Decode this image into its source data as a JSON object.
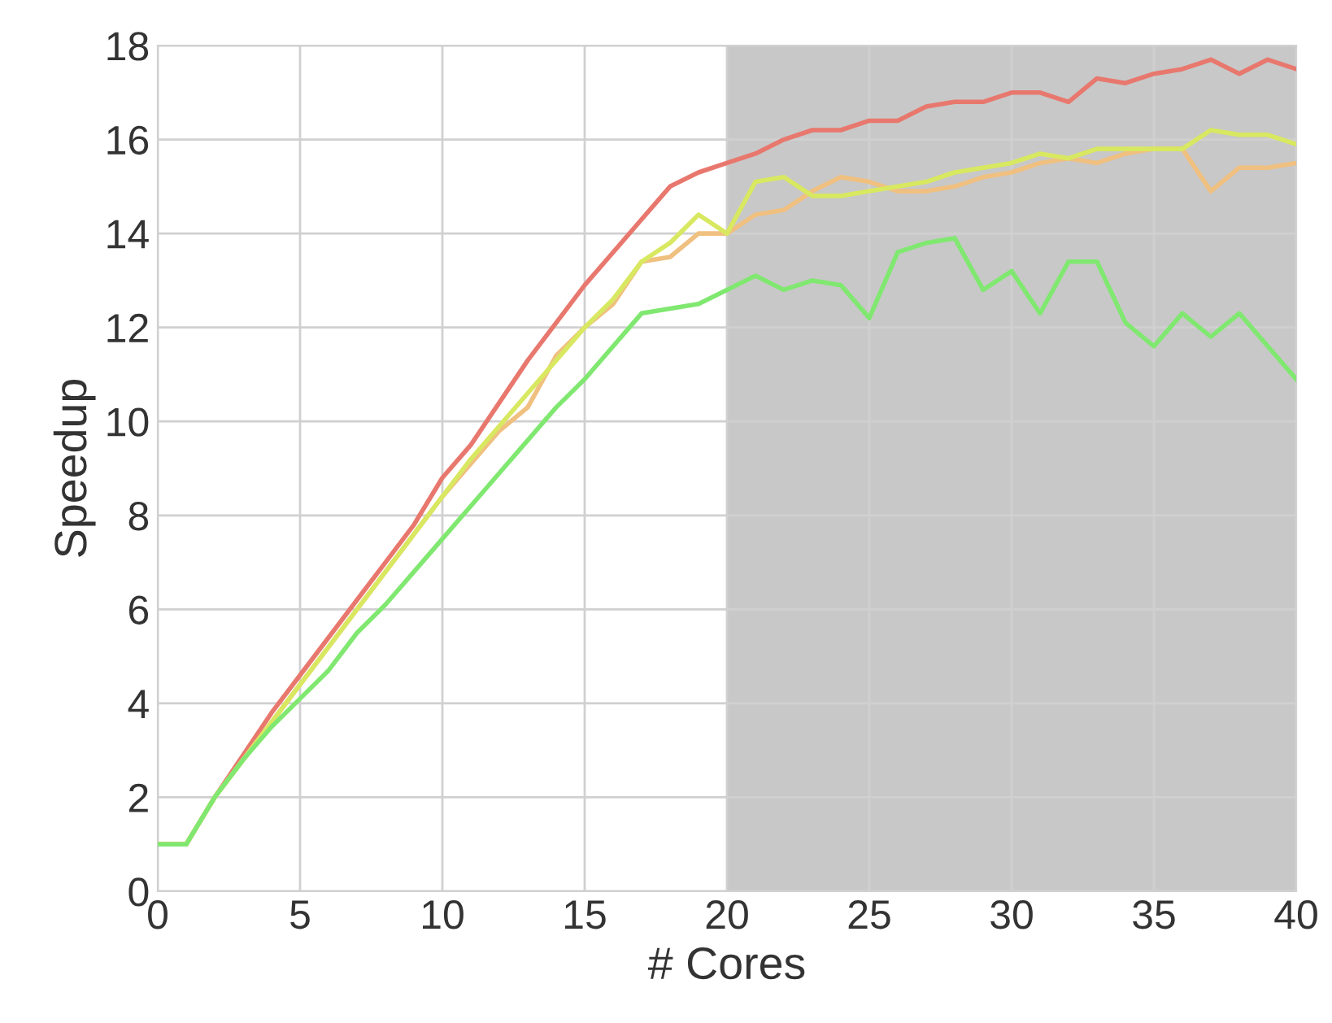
{
  "chart_data": {
    "type": "line",
    "xlabel": "# Cores",
    "ylabel": "Speedup",
    "x": [
      0,
      1,
      2,
      3,
      4,
      5,
      6,
      7,
      8,
      9,
      10,
      11,
      12,
      13,
      14,
      15,
      16,
      17,
      18,
      19,
      20,
      21,
      22,
      23,
      24,
      25,
      26,
      27,
      28,
      29,
      30,
      31,
      32,
      33,
      34,
      35,
      36,
      37,
      38,
      39,
      40
    ],
    "series": [
      {
        "color": "#e8786e",
        "values": [
          1,
          1,
          2,
          2.9,
          3.8,
          4.6,
          5.4,
          6.2,
          7,
          7.8,
          8.8,
          9.5,
          10.4,
          11.3,
          12.1,
          12.9,
          13.6,
          14.3,
          15,
          15.3,
          15.5,
          15.7,
          16,
          16.2,
          16.2,
          16.4,
          16.4,
          16.7,
          16.8,
          16.8,
          17,
          17,
          16.8,
          17.3,
          17.2,
          17.4,
          17.5,
          17.7,
          17.4,
          17.7,
          17.5
        ]
      },
      {
        "color": "#f0c080",
        "values": [
          1,
          1,
          2,
          2.8,
          3.6,
          4.4,
          5.2,
          6,
          6.8,
          7.6,
          8.4,
          9.1,
          9.8,
          10.3,
          11.4,
          12,
          12.5,
          13.4,
          13.5,
          14,
          14,
          14.4,
          14.5,
          14.9,
          15.2,
          15.1,
          14.9,
          14.9,
          15,
          15.2,
          15.3,
          15.5,
          15.6,
          15.5,
          15.7,
          15.8,
          15.8,
          14.9,
          15.4,
          15.4,
          15.5
        ]
      },
      {
        "color": "#d8e860",
        "values": [
          1,
          1,
          2,
          2.8,
          3.6,
          4.4,
          5.2,
          6,
          6.8,
          7.6,
          8.4,
          9.2,
          9.9,
          10.6,
          11.3,
          12,
          12.6,
          13.4,
          13.8,
          14.4,
          14,
          15.1,
          15.2,
          14.8,
          14.8,
          14.9,
          15,
          15.1,
          15.3,
          15.4,
          15.5,
          15.7,
          15.6,
          15.8,
          15.8,
          15.8,
          15.8,
          16.2,
          16.1,
          16.1,
          15.9
        ]
      },
      {
        "color": "#80e870",
        "values": [
          1,
          1,
          2,
          2.8,
          3.5,
          4.1,
          4.7,
          5.5,
          6.1,
          6.8,
          7.5,
          8.2,
          8.9,
          9.6,
          10.3,
          10.9,
          11.6,
          12.3,
          12.4,
          12.5,
          12.8,
          13.1,
          12.8,
          13,
          12.9,
          12.2,
          13.6,
          13.8,
          13.9,
          12.8,
          13.2,
          12.3,
          13.4,
          13.4,
          12.1,
          11.6,
          12.3,
          11.8,
          12.3,
          11.6,
          10.9
        ]
      }
    ],
    "bands": [
      {
        "axis": "x",
        "from": 20,
        "to": 40,
        "color": "#c8c8c8"
      }
    ],
    "xlim": [
      0,
      40
    ],
    "xticks": [
      0,
      5,
      10,
      15,
      20,
      25,
      30,
      35,
      40
    ],
    "ylim": [
      0,
      18
    ],
    "yticks": [
      0,
      2,
      4,
      6,
      8,
      10,
      12,
      14,
      16,
      18
    ],
    "grid": true,
    "legend": false,
    "marker": "none",
    "line_style": "solid"
  }
}
